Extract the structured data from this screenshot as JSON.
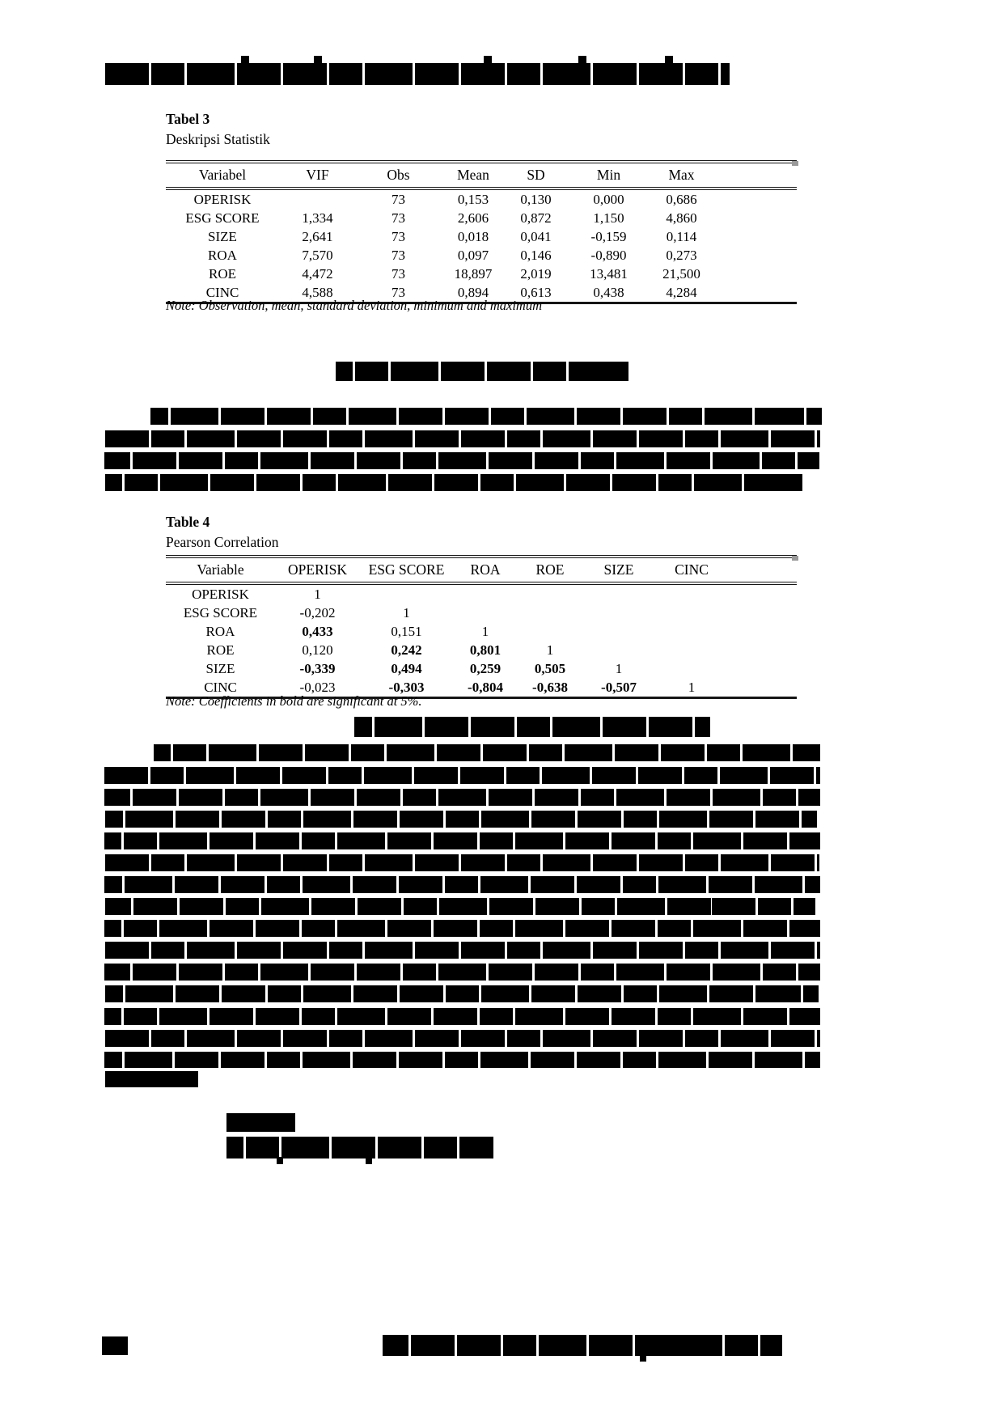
{
  "document": {
    "table3": {
      "label": "Tabel 3",
      "caption": "Deskripsi Statistik",
      "columns": [
        "Variabel",
        "VIF",
        "Obs",
        "Mean",
        "SD",
        "Min",
        "Max"
      ],
      "rows": [
        {
          "variable": "OPERISK",
          "values": [
            "",
            "73",
            "0,153",
            "0,130",
            "0,000",
            "0,686"
          ]
        },
        {
          "variable": "ESG SCORE",
          "values": [
            "1,334",
            "73",
            "2,606",
            "0,872",
            "1,150",
            "4,860"
          ]
        },
        {
          "variable": "SIZE",
          "values": [
            "2,641",
            "73",
            "0,018",
            "0,041",
            "-0,159",
            "0,114"
          ]
        },
        {
          "variable": "ROA",
          "values": [
            "7,570",
            "73",
            "0,097",
            "0,146",
            "-0,890",
            "0,273"
          ]
        },
        {
          "variable": "ROE",
          "values": [
            "4,472",
            "73",
            "18,897",
            "2,019",
            "13,481",
            "21,500"
          ]
        },
        {
          "variable": "CINC",
          "values": [
            "4,588",
            "73",
            "0,894",
            "0,613",
            "0,438",
            "4,284"
          ]
        }
      ],
      "note": "Note: Observation, mean, standard deviation, minimum and maximum"
    },
    "table4": {
      "label": "Table 4",
      "caption": "Pearson Correlation",
      "columns": [
        "Variable",
        "OPERISK",
        "ESG SCORE",
        "ROA",
        "ROE",
        "SIZE",
        "CINC"
      ],
      "rows": [
        {
          "variable": "OPERISK",
          "values": [
            {
              "text": "1",
              "bold": false
            }
          ]
        },
        {
          "variable": "ESG SCORE",
          "values": [
            {
              "text": "-0,202",
              "bold": false
            },
            {
              "text": "1",
              "bold": false
            }
          ]
        },
        {
          "variable": "ROA",
          "values": [
            {
              "text": "0,433",
              "bold": true
            },
            {
              "text": "0,151",
              "bold": false
            },
            {
              "text": "1",
              "bold": false
            }
          ]
        },
        {
          "variable": "ROE",
          "values": [
            {
              "text": "0,120",
              "bold": false
            },
            {
              "text": "0,242",
              "bold": true
            },
            {
              "text": "0,801",
              "bold": true
            },
            {
              "text": "1",
              "bold": false
            }
          ]
        },
        {
          "variable": "SIZE",
          "values": [
            {
              "text": "-0,339",
              "bold": true
            },
            {
              "text": "0,494",
              "bold": true
            },
            {
              "text": "0,259",
              "bold": true
            },
            {
              "text": "0,505",
              "bold": true
            },
            {
              "text": "1",
              "bold": false
            }
          ]
        },
        {
          "variable": "CINC",
          "values": [
            {
              "text": "-0,023",
              "bold": false
            },
            {
              "text": "-0,303",
              "bold": true
            },
            {
              "text": "-0,804",
              "bold": true
            },
            {
              "text": "-0,638",
              "bold": true
            },
            {
              "text": "-0,507",
              "bold": true
            },
            {
              "text": "1",
              "bold": false
            }
          ]
        }
      ],
      "note": "Note: Coefficients in bold are significant at 5%."
    },
    "colors": {
      "text": "#000000",
      "background": "#ffffff",
      "redaction": "#000000",
      "table_border": "#161616"
    }
  }
}
